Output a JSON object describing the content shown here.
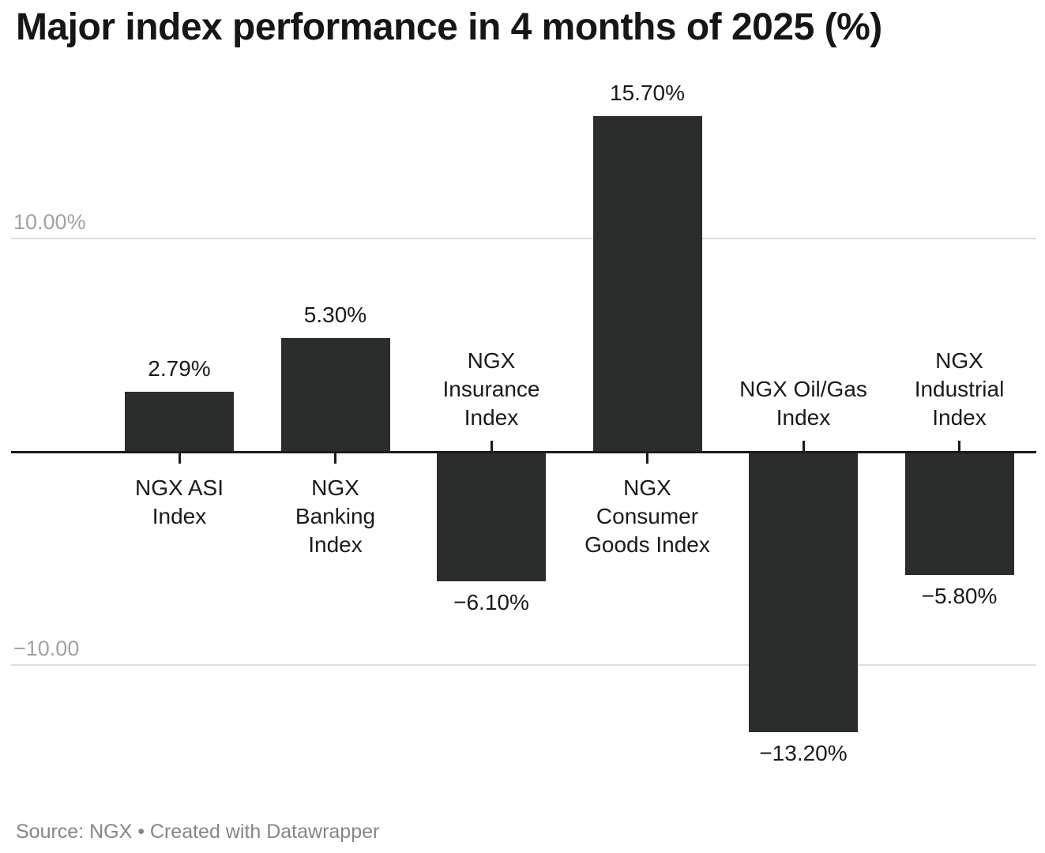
{
  "title": "Major index performance in 4 months of 2025 (%)",
  "source_line": "Source: NGX • Created with Datawrapper",
  "colors": {
    "bar": "#2b2d2c",
    "axis": "#1a1a1a",
    "gridline": "#dedede",
    "grid_label": "#a2a2a2",
    "label": "#1a1a1a",
    "title": "#161616",
    "source": "#868686",
    "background": "#ffffff"
  },
  "y_axis": {
    "gridlines": [
      {
        "label": "10.00%",
        "value": 10
      },
      {
        "label": "−10.00",
        "value": -10
      }
    ]
  },
  "chart_data": {
    "type": "bar",
    "title": "Major index performance in 4 months of 2025 (%)",
    "categories": [
      "NGX ASI Index",
      "NGX Banking Index",
      "NGX Insurance Index",
      "NGX Consumer Goods Index",
      "NGX Oil/Gas Index",
      "NGX Industrial Index"
    ],
    "category_display": [
      "NGX ASI\nIndex",
      "NGX\nBanking\nIndex",
      "NGX\nInsurance\nIndex",
      "NGX\nConsumer\nGoods Index",
      "NGX Oil/Gas\nIndex",
      "NGX\nIndustrial\nIndex"
    ],
    "values": [
      2.79,
      5.3,
      -6.1,
      15.7,
      -13.2,
      -5.8
    ],
    "value_labels": [
      "2.79%",
      "5.30%",
      "−6.10%",
      "15.70%",
      "−13.20%",
      "−5.80%"
    ],
    "ylabel": "",
    "xlabel": "",
    "ylim": [
      -15,
      17
    ],
    "grid": "horizontal",
    "legend": "none",
    "source": "NGX"
  }
}
